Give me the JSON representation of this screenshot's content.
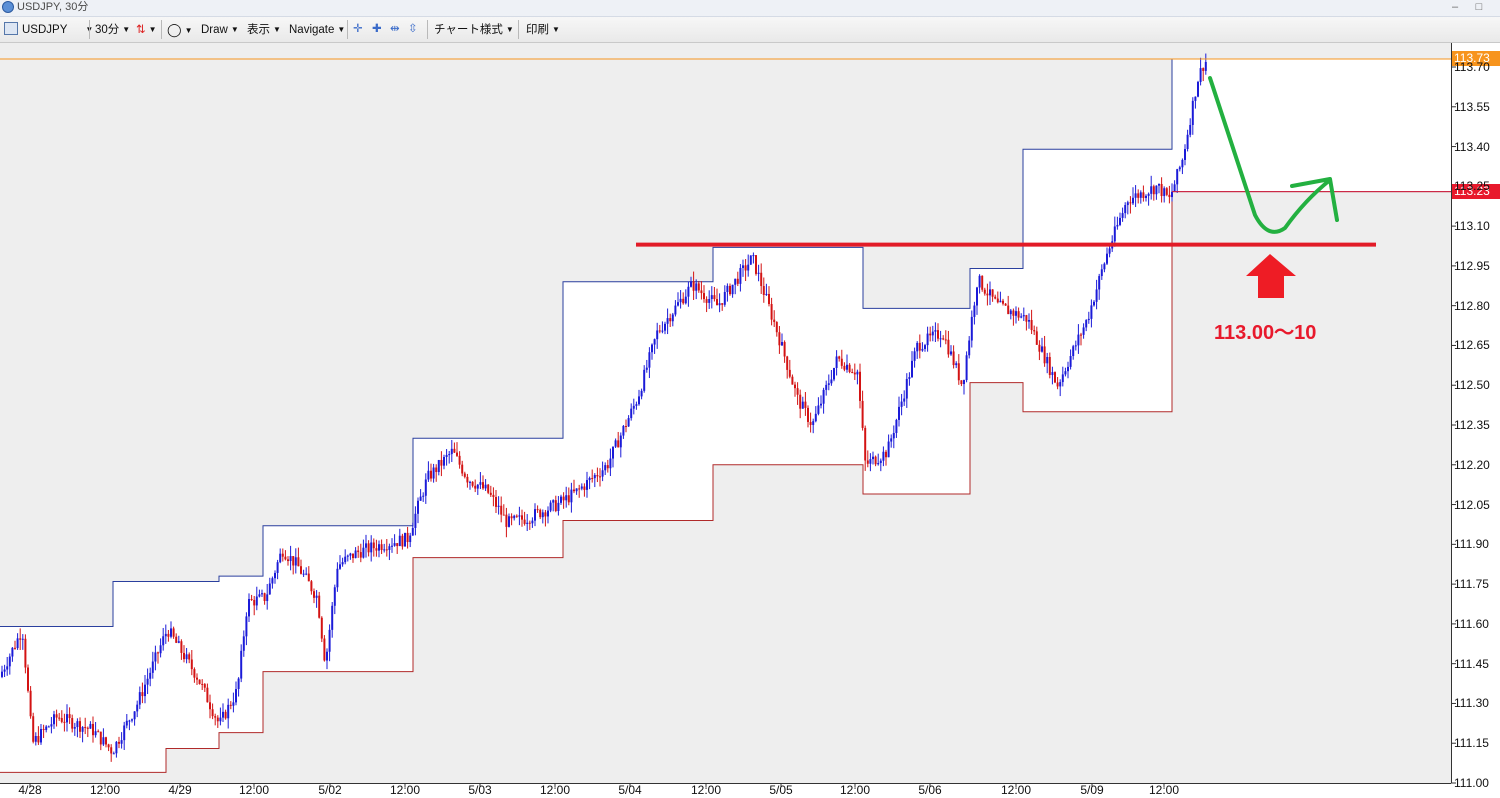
{
  "window": {
    "title": "USDJPY, 30分",
    "minimize": "–",
    "maximize": "□"
  },
  "toolbar": {
    "symbol": "USDJPY",
    "timeframe": "30分",
    "draw": "Draw",
    "display": "表示",
    "navigate": "Navigate",
    "chart_style": "チャート様式",
    "print": "印刷"
  },
  "price_tags": {
    "current": "113.73",
    "level": "113.23"
  },
  "annotation": {
    "text": "113.00～10"
  },
  "colors": {
    "up": "#1b1bd8",
    "down": "#d31313",
    "resistance": "#e21b27",
    "forecast": "#23b040",
    "arrow": "#ee1c25",
    "current_tag": "#f7941d",
    "level_tag": "#e8192c"
  },
  "chart_data": {
    "type": "candlestick",
    "symbol": "USDJPY",
    "timeframe": "30分",
    "y_ticks": [
      "113.70",
      "113.55",
      "113.40",
      "113.25",
      "113.10",
      "112.95",
      "112.80",
      "112.65",
      "112.50",
      "112.35",
      "112.20",
      "112.05",
      "111.90",
      "111.75",
      "111.60",
      "111.45",
      "111.30",
      "111.15",
      "111.00"
    ],
    "x_labels": [
      "4/28",
      "12:00",
      "4/29",
      "12:00",
      "5/02",
      "12:00",
      "5/03",
      "12:00",
      "5/04",
      "12:00",
      "5/05",
      "12:00",
      "5/06",
      "12:00",
      "5/09",
      "12:00"
    ],
    "ylim": [
      111.0,
      113.75
    ],
    "last_price": 113.73,
    "marked_level": 113.23,
    "resistance_line": 113.03,
    "daily_channel": [
      {
        "day": "4/28",
        "high": 111.59,
        "low": 111.04
      },
      {
        "day": "4/28b",
        "high": 111.76,
        "low": 111.04
      },
      {
        "day": "4/29a",
        "high": 111.76,
        "low": 111.13
      },
      {
        "day": "4/29b",
        "high": 111.78,
        "low": 111.19
      },
      {
        "day": "5/02a",
        "high": 111.97,
        "low": 111.42
      },
      {
        "day": "5/02b",
        "high": 111.97,
        "low": 111.85
      },
      {
        "day": "5/03",
        "high": 112.3,
        "low": 111.85
      },
      {
        "day": "5/03b",
        "high": 112.89,
        "low": 111.99
      },
      {
        "day": "5/04",
        "high": 113.02,
        "low": 112.2
      },
      {
        "day": "5/05",
        "high": 112.79,
        "low": 112.09
      },
      {
        "day": "5/06",
        "high": 112.94,
        "low": 112.51
      },
      {
        "day": "5/06b",
        "high": 113.39,
        "low": 112.4
      },
      {
        "day": "5/09",
        "high": 113.73,
        "low": 113.23
      }
    ]
  }
}
